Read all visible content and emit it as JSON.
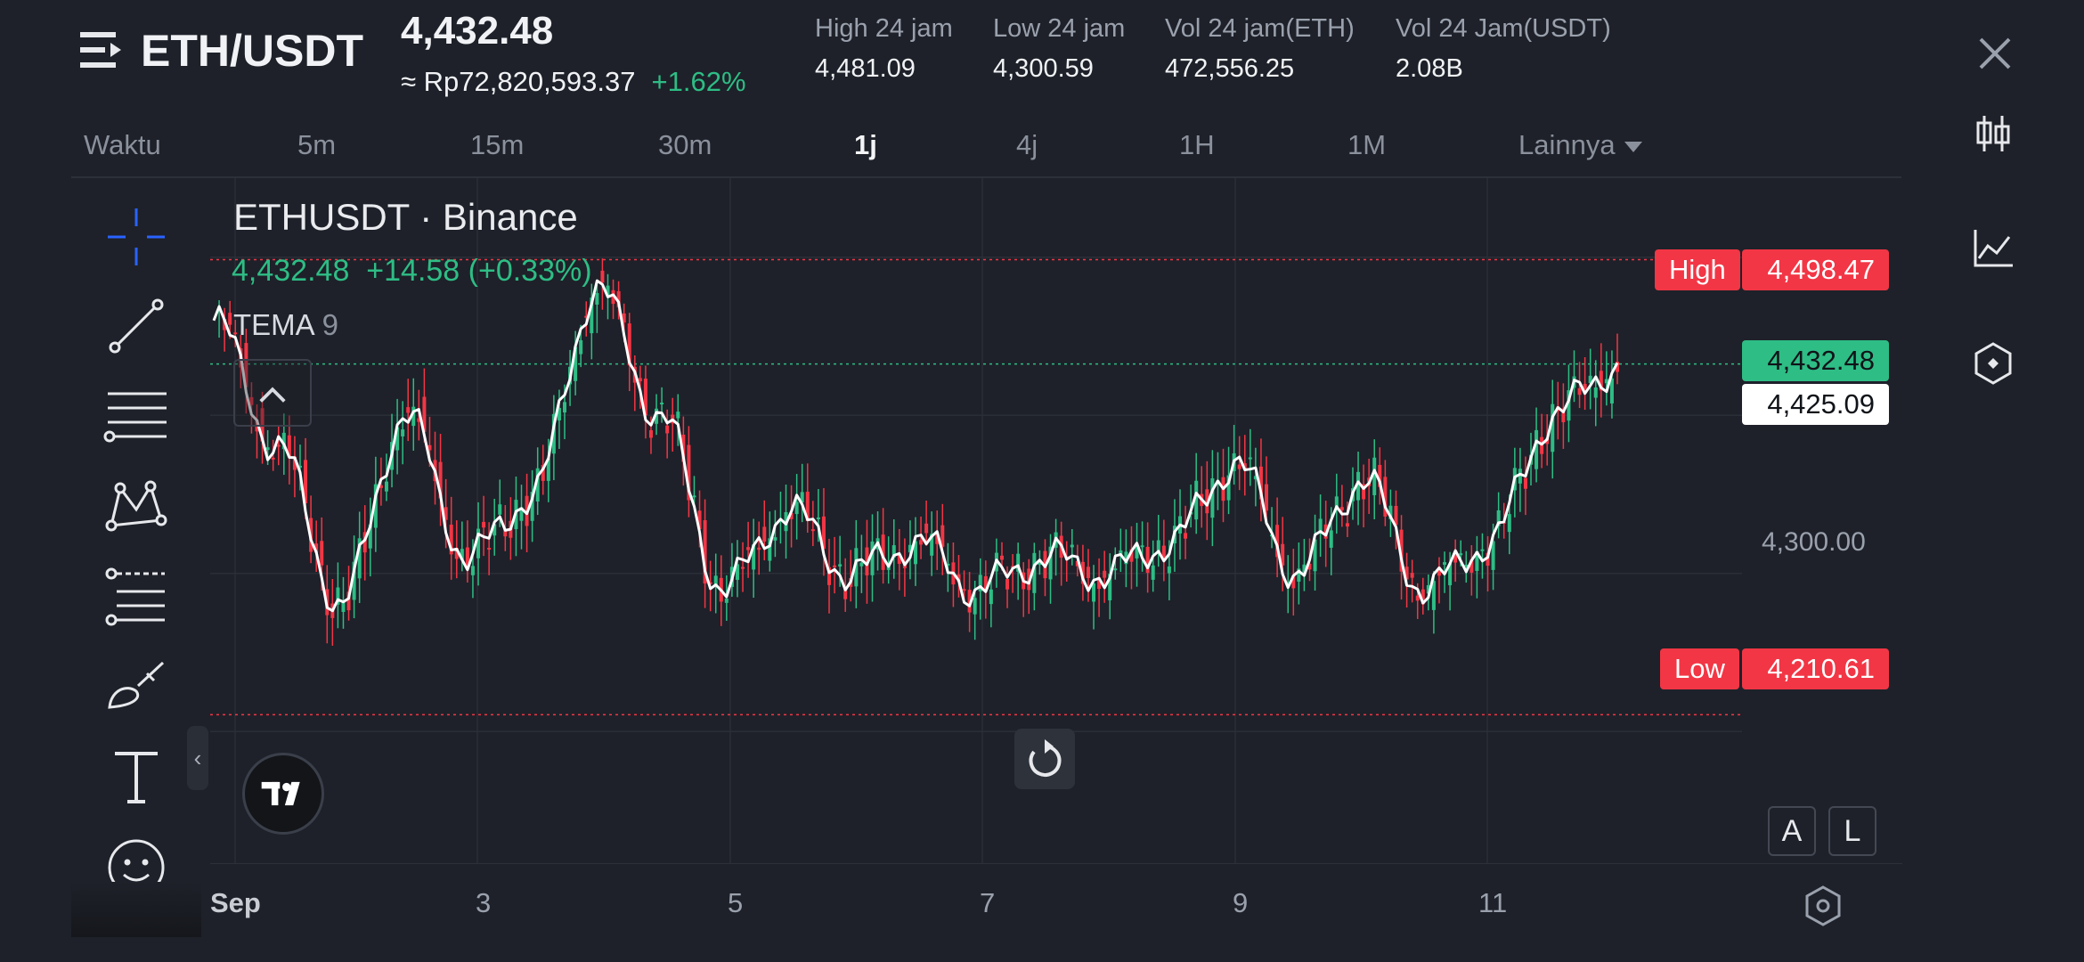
{
  "header": {
    "pair": "ETH/USDT",
    "last_price": "4,432.48",
    "idr_price": "≈ Rp72,820,593.37",
    "pct_change": "+1.62%",
    "stats": [
      {
        "label": "High 24 jam",
        "value": "4,481.09"
      },
      {
        "label": "Low 24 jam",
        "value": "4,300.59"
      },
      {
        "label": "Vol 24 jam(ETH)",
        "value": "472,556.25"
      },
      {
        "label": "Vol 24 Jam(USDT)",
        "value": "2.08B"
      }
    ]
  },
  "timeframes": {
    "items": [
      "Waktu",
      "5m",
      "15m",
      "30m",
      "1j",
      "4j",
      "1H",
      "1M",
      "Lainnya"
    ],
    "active": "1j"
  },
  "chart": {
    "title": "ETHUSDT · Binance",
    "ohlc_last": "4,432.48",
    "ohlc_change": "+14.58 (+0.33%)",
    "indicator_name": "TEMA",
    "indicator_param": "9",
    "high_label": "High",
    "high_value": "4,498.47",
    "low_label": "Low",
    "low_value": "4,210.61",
    "last_tag": "4,432.48",
    "tema_tag": "4,425.09",
    "price_axis_label": "4,300.00",
    "x_ticks": [
      "Sep",
      "3",
      "5",
      "7",
      "9",
      "11"
    ],
    "scale_auto": "A",
    "scale_log": "L"
  },
  "chart_data": {
    "type": "line",
    "title": "ETHUSDT · Binance",
    "xlabel": "",
    "ylabel": "",
    "x": [
      "Sep 1",
      "Sep 1.5",
      "Sep 2",
      "Sep 2.5",
      "Sep 3",
      "Sep 3.5",
      "Sep 4",
      "Sep 4.5",
      "Sep 5",
      "Sep 5.5",
      "Sep 6",
      "Sep 6.5",
      "Sep 7",
      "Sep 7.5",
      "Sep 8",
      "Sep 8.5",
      "Sep 9",
      "Sep 9.5",
      "Sep 10",
      "Sep 10.5",
      "Sep 11",
      "Sep 11.5",
      "Sep 12"
    ],
    "series": [
      {
        "values": [
          4460,
          4380,
          4280,
          4400,
          4310,
          4350,
          4480,
          4400,
          4290,
          4340,
          4300,
          4320,
          4290,
          4310,
          4300,
          4320,
          4370,
          4300,
          4360,
          4290,
          4320,
          4400,
          4432
        ]
      }
    ],
    "ylim": [
      4150,
      4550
    ],
    "reference_lines": {
      "high": 4498.47,
      "low": 4210.61,
      "last": 4432.48
    },
    "grid": true,
    "colors": {
      "up": "#2ebd85",
      "down": "#f23645",
      "line": "#ffffff"
    }
  }
}
